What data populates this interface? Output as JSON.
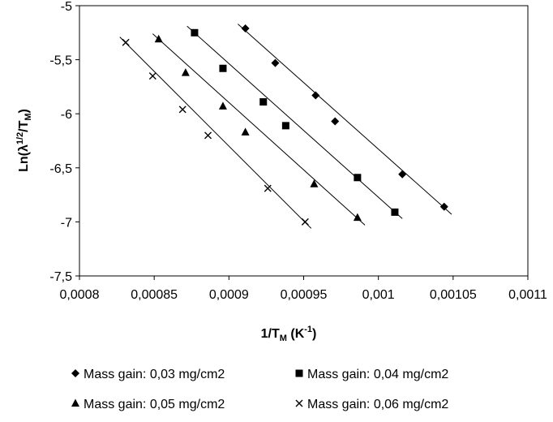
{
  "chart_data": {
    "type": "scatter",
    "xlabel": {
      "main": "1/T",
      "sub": "M",
      "unit_open": " (K",
      "unit_sup": "-1",
      "unit_close": ")"
    },
    "ylabel": {
      "main": "Ln(λ",
      "sup": "1/2",
      "mid": "/T",
      "sub": "M",
      "close": ")"
    },
    "xlim": [
      0.0008,
      0.0011
    ],
    "ylim": [
      -7.5,
      -5
    ],
    "x_ticks": [
      0.0008,
      0.00085,
      0.0009,
      0.00095,
      0.001,
      0.00105,
      0.0011
    ],
    "x_tick_labels": [
      "0,0008",
      "0,00085",
      "0,0009",
      "0,00095",
      "0,001",
      "0,00105",
      "0,0011"
    ],
    "y_ticks": [
      -5,
      -5.5,
      -6,
      -6.5,
      -7,
      -7.5
    ],
    "y_tick_labels": [
      "-5",
      "-5,5",
      "-6",
      "-6,5",
      "-7",
      "-7,5"
    ],
    "grid": false,
    "legend_position": "bottom",
    "series": [
      {
        "name": "Mass gain: 0,03 mg/cm2",
        "marker": "diamond",
        "x": [
          0.000911,
          0.000931,
          0.000958,
          0.000971,
          0.001016,
          0.001044
        ],
        "y": [
          -5.21,
          -5.53,
          -5.83,
          -6.07,
          -6.56,
          -6.86
        ],
        "fit": {
          "x": [
            0.000906,
            0.001049
          ],
          "y": [
            -5.17,
            -6.93
          ]
        }
      },
      {
        "name": "Mass gain: 0,04 mg/cm2",
        "marker": "square",
        "x": [
          0.000877,
          0.000896,
          0.000923,
          0.000938,
          0.000986,
          0.001011
        ],
        "y": [
          -5.25,
          -5.58,
          -5.89,
          -6.11,
          -6.59,
          -6.91
        ],
        "fit": {
          "x": [
            0.000872,
            0.001016
          ],
          "y": [
            -5.19,
            -6.97
          ]
        }
      },
      {
        "name": "Mass gain: 0,05 mg/cm2",
        "marker": "triangle",
        "x": [
          0.000853,
          0.000871,
          0.000896,
          0.000911,
          0.000957,
          0.000986
        ],
        "y": [
          -5.31,
          -5.62,
          -5.93,
          -6.17,
          -6.65,
          -6.96
        ],
        "fit": {
          "x": [
            0.000849,
            0.000991
          ],
          "y": [
            -5.26,
            -7.03
          ]
        }
      },
      {
        "name": "Mass gain: 0,06 mg/cm2",
        "marker": "cross",
        "x": [
          0.000831,
          0.000849,
          0.000869,
          0.000886,
          0.000926,
          0.000951
        ],
        "y": [
          -5.34,
          -5.65,
          -5.96,
          -6.2,
          -6.69,
          -7.0
        ],
        "fit": {
          "x": [
            0.000827,
            0.000955
          ],
          "y": [
            -5.29,
            -7.06
          ]
        }
      }
    ]
  }
}
